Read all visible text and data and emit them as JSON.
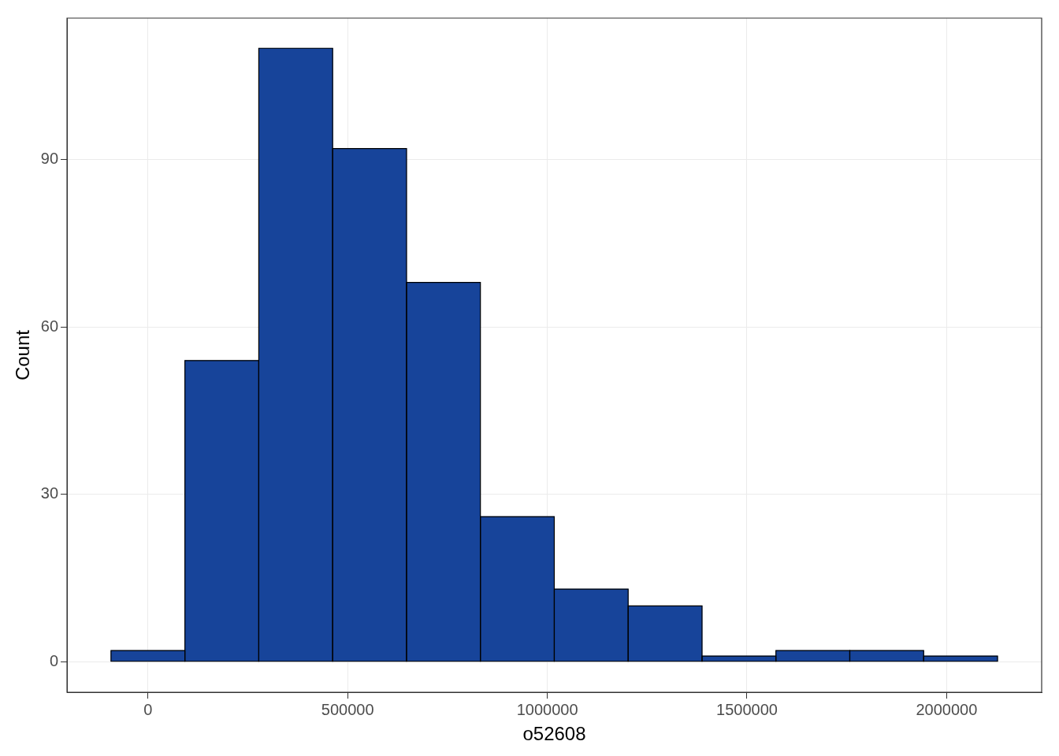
{
  "chart_data": {
    "type": "histogram",
    "xlabel": "o52608",
    "ylabel": "Count",
    "bins": [
      -92500,
      92500,
      277500,
      462500,
      647500,
      832500,
      1017500,
      1202500,
      1387500,
      1572500,
      1757500,
      1942500,
      2127500
    ],
    "values": [
      2,
      54,
      110,
      92,
      68,
      26,
      13,
      10,
      1,
      2,
      2,
      1
    ],
    "color": "#17449a",
    "xlim": [
      -202700,
      2238000
    ],
    "ylim": [
      -5.5,
      115.4
    ],
    "xticks": [
      0,
      500000,
      1000000,
      1500000,
      2000000
    ],
    "yticks": [
      0,
      30,
      60,
      90
    ],
    "grid": true,
    "legend": false
  }
}
